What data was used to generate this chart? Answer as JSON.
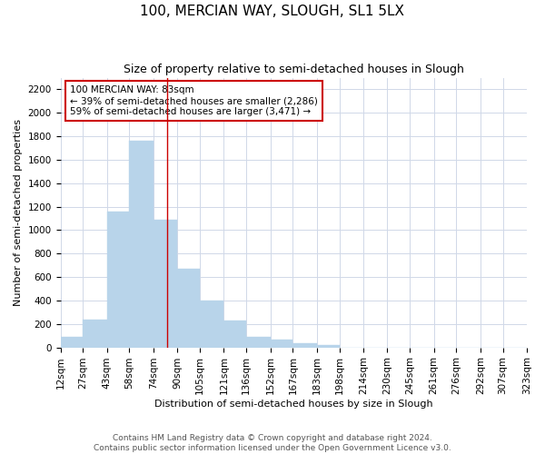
{
  "title": "100, MERCIAN WAY, SLOUGH, SL1 5LX",
  "subtitle": "Size of property relative to semi-detached houses in Slough",
  "xlabel": "Distribution of semi-detached houses by size in Slough",
  "ylabel": "Number of semi-detached properties",
  "bin_labels": [
    "12sqm",
    "27sqm",
    "43sqm",
    "58sqm",
    "74sqm",
    "90sqm",
    "105sqm",
    "121sqm",
    "136sqm",
    "152sqm",
    "167sqm",
    "183sqm",
    "198sqm",
    "214sqm",
    "230sqm",
    "245sqm",
    "261sqm",
    "276sqm",
    "292sqm",
    "307sqm",
    "323sqm"
  ],
  "bin_edges": [
    12,
    27,
    43,
    58,
    74,
    90,
    105,
    121,
    136,
    152,
    167,
    183,
    198,
    214,
    230,
    245,
    261,
    276,
    292,
    307,
    323
  ],
  "bar_heights": [
    90,
    240,
    1160,
    1760,
    1090,
    670,
    400,
    230,
    90,
    70,
    35,
    20,
    0,
    0,
    0,
    0,
    0,
    0,
    0,
    0
  ],
  "bar_color": "#b8d4ea",
  "bar_edgecolor": "#b8d4ea",
  "property_value": 83,
  "vline_color": "#cc0000",
  "annotation_text": "100 MERCIAN WAY: 83sqm\n← 39% of semi-detached houses are smaller (2,286)\n59% of semi-detached houses are larger (3,471) →",
  "annotation_box_edgecolor": "#cc0000",
  "annotation_box_facecolor": "#ffffff",
  "ylim": [
    0,
    2300
  ],
  "yticks": [
    0,
    200,
    400,
    600,
    800,
    1000,
    1200,
    1400,
    1600,
    1800,
    2000,
    2200
  ],
  "footer_text": "Contains HM Land Registry data © Crown copyright and database right 2024.\nContains public sector information licensed under the Open Government Licence v3.0.",
  "background_color": "#ffffff",
  "grid_color": "#d0d8e8",
  "title_fontsize": 11,
  "subtitle_fontsize": 9,
  "axis_label_fontsize": 8,
  "tick_fontsize": 7.5,
  "footer_fontsize": 6.5
}
